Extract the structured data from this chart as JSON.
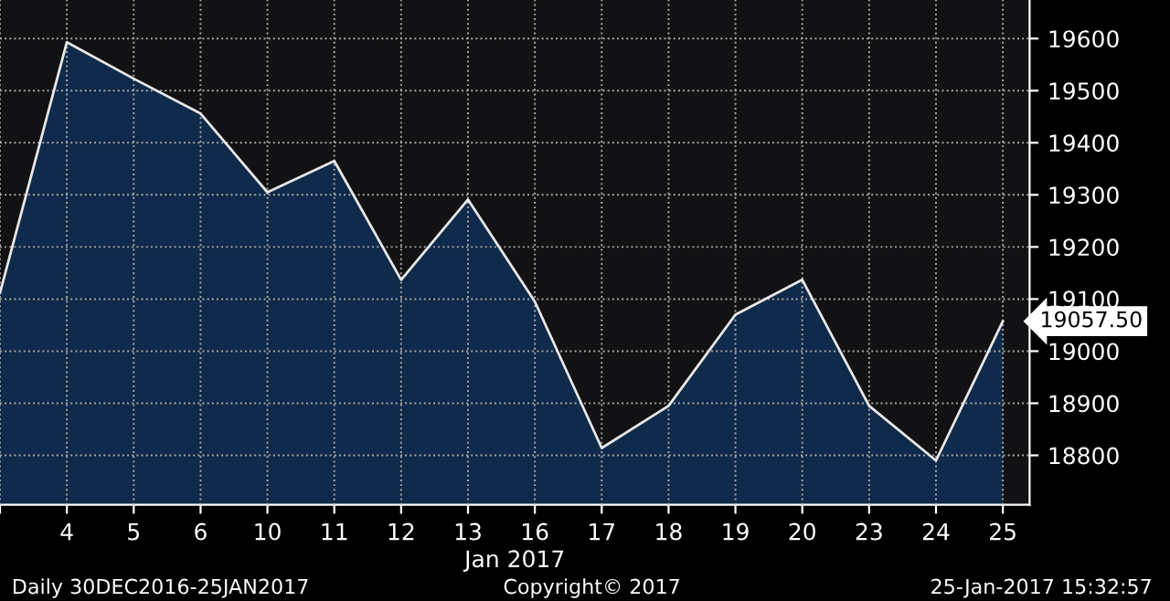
{
  "chart_data": {
    "type": "area",
    "xlabel": "Jan 2017",
    "categories": [
      null,
      "4",
      "5",
      "6",
      "10",
      "11",
      "12",
      "13",
      "16",
      "17",
      "18",
      "19",
      "20",
      "23",
      "24",
      "25"
    ],
    "series": [
      {
        "color": "#0f2a4a",
        "values": [
          19112,
          19593,
          19523,
          19456,
          19305,
          19365,
          19137,
          19291,
          19095,
          18814,
          18895,
          19070,
          19137,
          18895,
          18790,
          19057.5
        ],
        "value_labels": [
          null,
          null,
          null,
          null,
          null,
          null,
          null,
          null,
          null,
          null,
          null,
          null,
          null,
          null,
          null,
          "19057.50"
        ]
      }
    ],
    "ylim": [
      18705,
      19674
    ],
    "yticks": [
      18800,
      18900,
      19000,
      19100,
      19200,
      19300,
      19400,
      19500,
      19600
    ],
    "grid": true,
    "annotations": [
      "Daily 30DEC2016-25JAN2017",
      "Copyright© 2017",
      "25-Jan-2017 15:32:57"
    ]
  }
}
